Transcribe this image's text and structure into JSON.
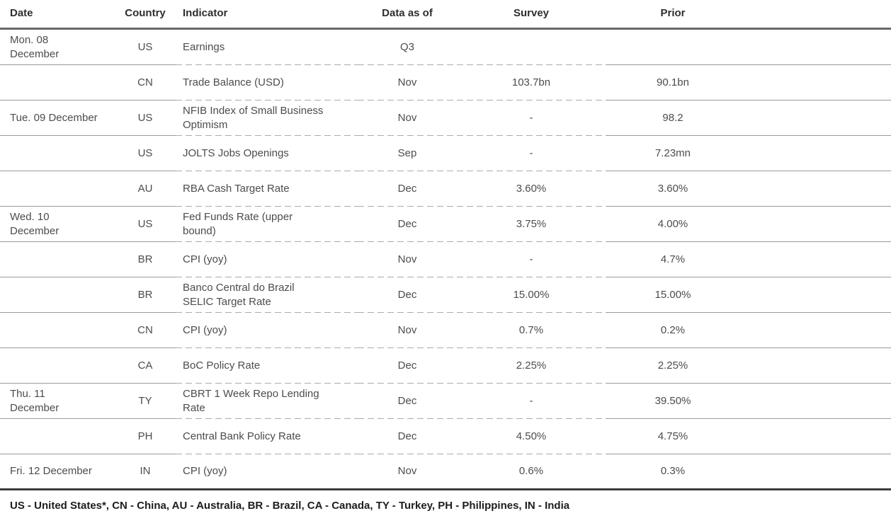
{
  "table": {
    "columns": [
      {
        "key": "date",
        "label": "Date"
      },
      {
        "key": "country",
        "label": "Country"
      },
      {
        "key": "indicator",
        "label": "Indicator"
      },
      {
        "key": "data_as_of",
        "label": "Data as of"
      },
      {
        "key": "survey",
        "label": "Survey"
      },
      {
        "key": "prior",
        "label": "Prior"
      }
    ],
    "rows": [
      {
        "date": "Mon. 08\nDecember",
        "country": "US",
        "indicator": "Earnings",
        "data_as_of": "Q3",
        "survey": "",
        "prior": ""
      },
      {
        "date": "",
        "country": "CN",
        "indicator": "Trade Balance (USD)",
        "data_as_of": "Nov",
        "survey": "103.7bn",
        "prior": "90.1bn"
      },
      {
        "date": "Tue. 09 December",
        "country": "US",
        "indicator": "NFIB Index of Small Business Optimism",
        "data_as_of": "Nov",
        "survey": "-",
        "prior": "98.2"
      },
      {
        "date": "",
        "country": "US",
        "indicator": "JOLTS Jobs Openings",
        "data_as_of": "Sep",
        "survey": "-",
        "prior": "7.23mn"
      },
      {
        "date": "",
        "country": "AU",
        "indicator": "RBA Cash Target Rate",
        "data_as_of": "Dec",
        "survey": "3.60%",
        "prior": "3.60%"
      },
      {
        "date": "Wed. 10\nDecember",
        "country": "US",
        "indicator": "Fed Funds Rate (upper bound)",
        "data_as_of": "Dec",
        "survey": "3.75%",
        "prior": "4.00%"
      },
      {
        "date": "",
        "country": "BR",
        "indicator": "CPI (yoy)",
        "data_as_of": "Nov",
        "survey": "-",
        "prior": "4.7%"
      },
      {
        "date": "",
        "country": "BR",
        "indicator": "Banco Central do Brazil SELIC Target Rate",
        "data_as_of": "Dec",
        "survey": "15.00%",
        "prior": "15.00%"
      },
      {
        "date": "",
        "country": "CN",
        "indicator": "CPI (yoy)",
        "data_as_of": "Nov",
        "survey": "0.7%",
        "prior": "0.2%"
      },
      {
        "date": "",
        "country": "CA",
        "indicator": "BoC Policy Rate",
        "data_as_of": "Dec",
        "survey": "2.25%",
        "prior": "2.25%"
      },
      {
        "date": "Thu. 11\nDecember",
        "country": "TY",
        "indicator": "CBRT 1 Week Repo Lending Rate",
        "data_as_of": "Dec",
        "survey": "-",
        "prior": "39.50%"
      },
      {
        "date": "",
        "country": "PH",
        "indicator": "Central Bank Policy Rate",
        "data_as_of": "Dec",
        "survey": "4.50%",
        "prior": "4.75%"
      },
      {
        "date": "Fri. 12 December",
        "country": "IN",
        "indicator": "CPI (yoy)",
        "data_as_of": "Nov",
        "survey": "0.6%",
        "prior": "0.3%"
      }
    ]
  },
  "footer": {
    "legend": "US - United States*, CN - China, AU - Australia, BR - Brazil, CA - Canada, TY - Turkey, PH - Philippines, IN - India"
  },
  "colors": {
    "background": "#ffffff",
    "text_header": "#2e2e2e",
    "text_body": "#4c4c4c",
    "text_footer": "#1d1d1d",
    "rule_header": "#696969",
    "rule_bottom": "#3c3c3c",
    "rule_solid": "#9a9a9a",
    "rule_dash": "#ababab"
  }
}
